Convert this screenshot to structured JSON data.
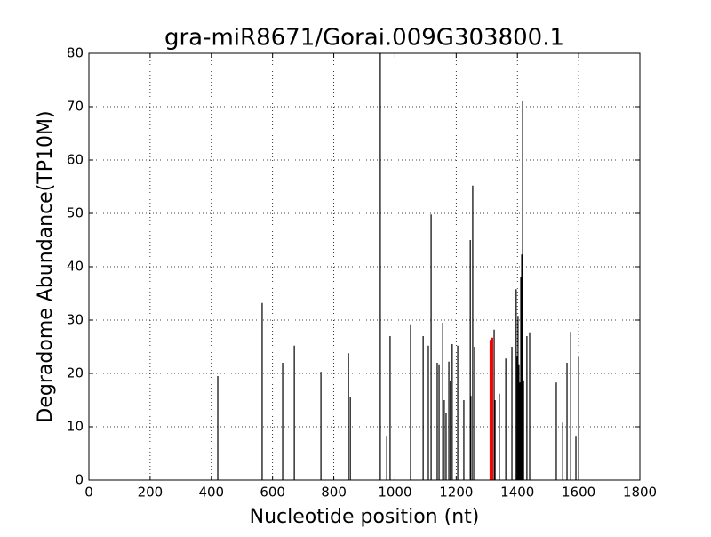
{
  "chart_data": {
    "type": "stem",
    "title": "gra-miR8671/Gorai.009G303800.1",
    "x_label": "Nucleotide position (nt)",
    "y_label": "Degradome Abundance(TP10M)",
    "xlim": [
      0,
      1800
    ],
    "xticks": [
      0,
      200,
      400,
      600,
      800,
      1000,
      1200,
      1400,
      1600,
      1800
    ],
    "ylim": [
      0,
      80
    ],
    "yticks": [
      0,
      10,
      20,
      30,
      40,
      50,
      60,
      70,
      80
    ],
    "grid": true,
    "series": [
      {
        "color": "#000000",
        "x": [
          421,
          566,
          633,
          671,
          758,
          848,
          854,
          952,
          973,
          984,
          1051,
          1092,
          1109,
          1118,
          1138,
          1144,
          1156,
          1161,
          1167,
          1176,
          1181,
          1187,
          1205,
          1225,
          1246,
          1248,
          1254,
          1260,
          1324,
          1327,
          1341,
          1362,
          1382,
          1396,
          1399,
          1402,
          1405,
          1408,
          1411,
          1414,
          1417,
          1420,
          1431,
          1440,
          1527,
          1548,
          1562,
          1574,
          1591,
          1600
        ],
        "values": [
          19.5,
          33.2,
          22,
          25.2,
          20.3,
          23.8,
          15.5,
          80,
          8.3,
          27,
          29.2,
          27,
          25.2,
          49.8,
          22,
          21.7,
          29.5,
          15,
          12.5,
          22.2,
          18.5,
          25.5,
          25.2,
          15,
          45,
          15.8,
          55.2,
          25,
          28.2,
          15,
          16.2,
          22.8,
          25,
          35.8,
          23.3,
          30.8,
          21.7,
          18.3,
          38,
          42.3,
          71,
          18.7,
          27,
          27.7,
          18.3,
          10.8,
          22,
          27.8,
          8.3,
          23.2
        ]
      },
      {
        "color": "#ff0000",
        "x": [
          1312,
          1318
        ],
        "values": [
          26.3,
          26.7
        ]
      }
    ]
  }
}
